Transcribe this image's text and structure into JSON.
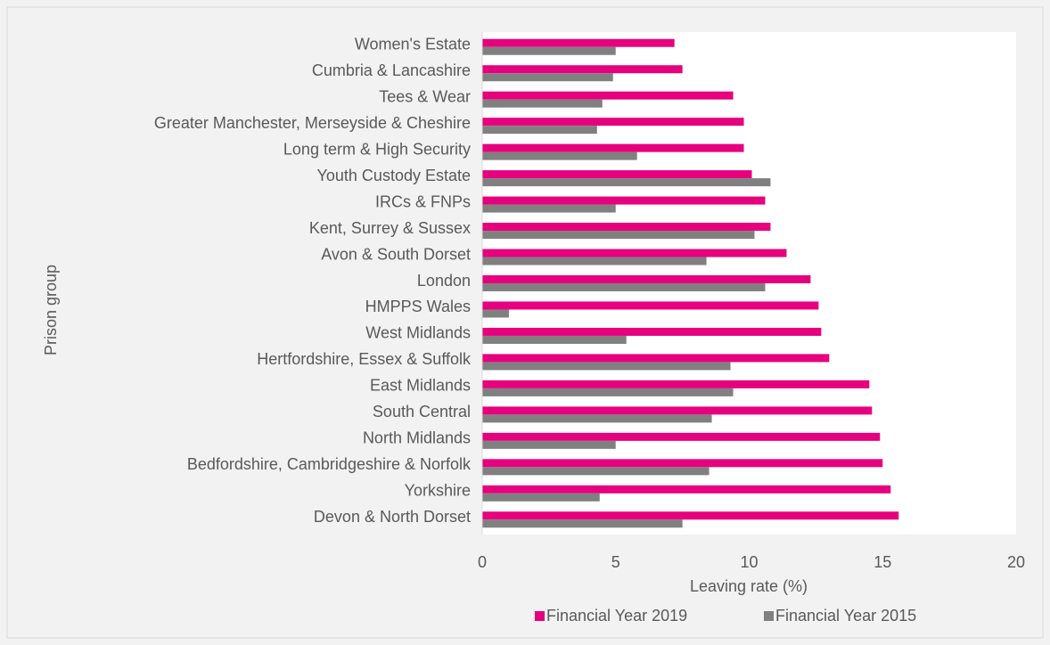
{
  "chart_data": {
    "type": "hbar",
    "categories": [
      "Women's Estate",
      "Cumbria & Lancashire",
      "Tees & Wear",
      "Greater Manchester, Merseyside & Cheshire",
      "Long term & High Security",
      "Youth Custody Estate",
      "IRCs & FNPs",
      "Kent, Surrey & Sussex",
      "Avon & South Dorset",
      "London",
      "HMPPS Wales",
      "West Midlands",
      "Hertfordshire, Essex & Suffolk",
      "East Midlands",
      "South Central",
      "North Midlands",
      "Bedfordshire, Cambridgeshire & Norfolk",
      "Yorkshire",
      "Devon & North Dorset"
    ],
    "series": [
      {
        "name": "Financial Year 2019",
        "color": "#e6007e",
        "values": [
          7.2,
          7.5,
          9.4,
          9.8,
          9.8,
          10.1,
          10.6,
          10.8,
          11.4,
          12.3,
          12.6,
          12.7,
          13.0,
          14.5,
          14.6,
          14.9,
          15.0,
          15.3,
          15.6
        ]
      },
      {
        "name": "Financial Year 2015",
        "color": "#808080",
        "values": [
          5.0,
          4.9,
          4.5,
          4.3,
          5.8,
          10.8,
          5.0,
          10.2,
          8.4,
          10.6,
          1.0,
          5.4,
          9.3,
          9.4,
          8.6,
          5.0,
          8.5,
          4.4,
          7.5
        ]
      }
    ],
    "xlabel": "Leaving rate (%)",
    "ylabel": "Prison group",
    "xlim": [
      0,
      20
    ],
    "xticks": [
      0,
      5,
      10,
      15,
      20
    ],
    "legend": "bottom"
  }
}
